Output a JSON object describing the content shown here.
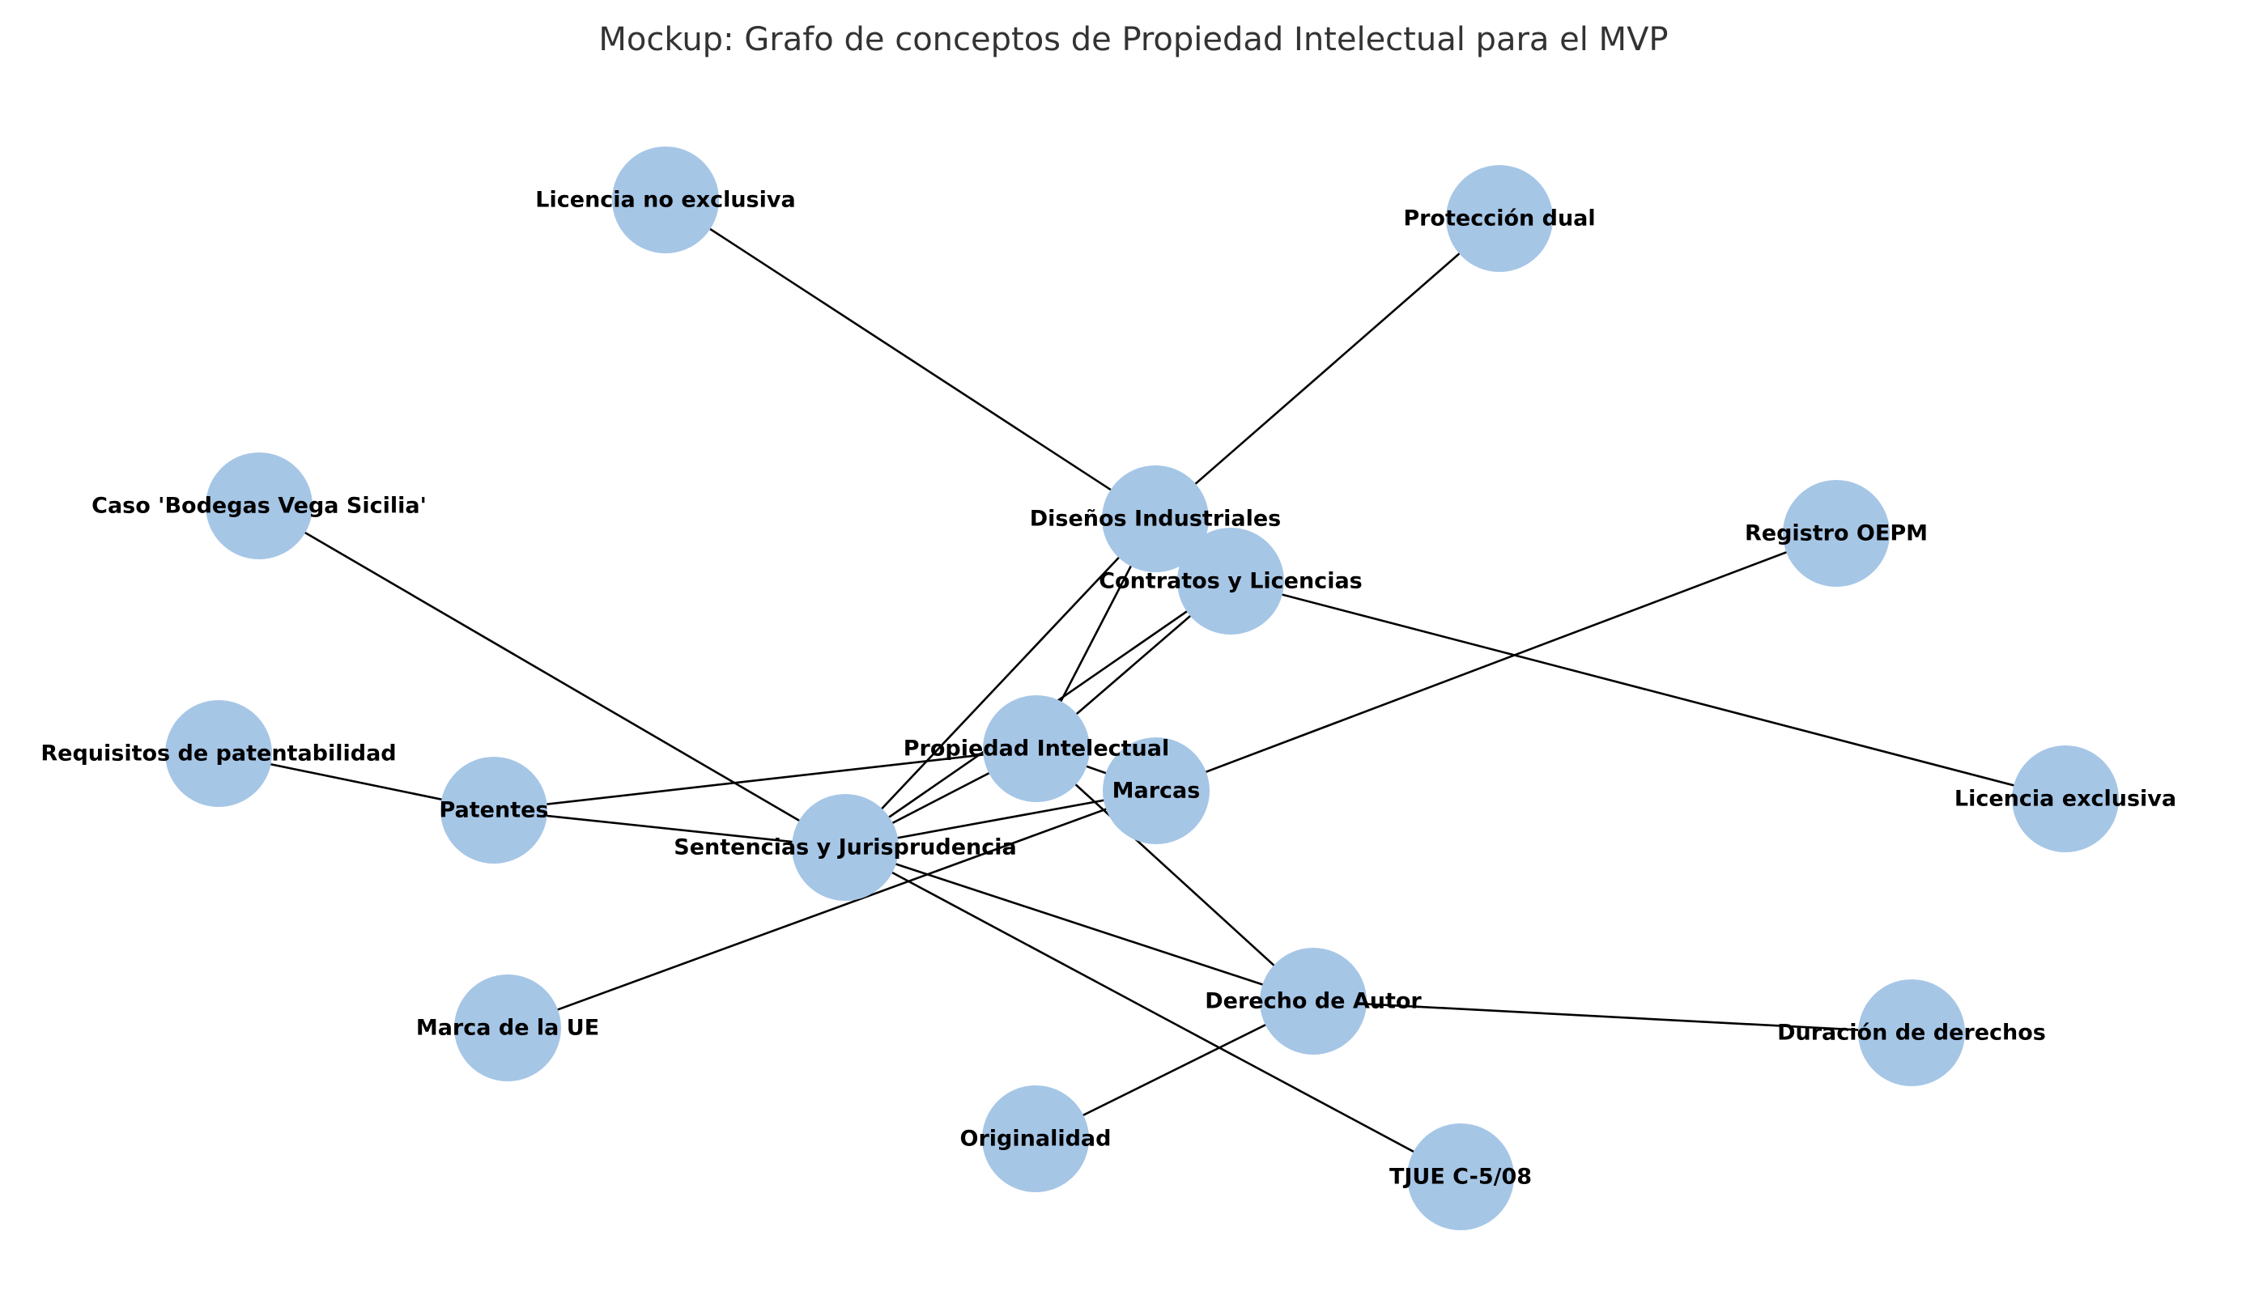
{
  "title": "Mockup: Grafo de conceptos de Propiedad Intelectual para el MVP",
  "colors": {
    "node_fill": "#a6c6e6",
    "edge": "#000000",
    "title": "#333333",
    "label": "#000000"
  },
  "nodes": [
    {
      "id": "pi",
      "label": "Propiedad Intelectual"
    },
    {
      "id": "patentes",
      "label": "Patentes"
    },
    {
      "id": "marcas",
      "label": "Marcas"
    },
    {
      "id": "autor",
      "label": "Derecho de Autor"
    },
    {
      "id": "disenos",
      "label": "Diseños Industriales"
    },
    {
      "id": "contratos",
      "label": "Contratos y Licencias"
    },
    {
      "id": "sentencias",
      "label": "Sentencias y Jurisprudencia"
    },
    {
      "id": "requisitos",
      "label": "Requisitos de patentabilidad"
    },
    {
      "id": "oepm",
      "label": "Registro OEPM"
    },
    {
      "id": "marca_ue",
      "label": "Marca de la UE"
    },
    {
      "id": "originalidad",
      "label": "Originalidad"
    },
    {
      "id": "duracion",
      "label": "Duración de derechos"
    },
    {
      "id": "dual",
      "label": "Protección dual"
    },
    {
      "id": "exclusiva",
      "label": "Licencia exclusiva"
    },
    {
      "id": "no_exclusiva",
      "label": "Licencia no exclusiva"
    },
    {
      "id": "tjue",
      "label": "TJUE C-5/08"
    },
    {
      "id": "vega",
      "label": "Caso 'Bodegas Vega Sicilia'"
    }
  ],
  "edges": [
    [
      "pi",
      "patentes"
    ],
    [
      "pi",
      "marcas"
    ],
    [
      "pi",
      "autor"
    ],
    [
      "pi",
      "disenos"
    ],
    [
      "pi",
      "contratos"
    ],
    [
      "pi",
      "sentencias"
    ],
    [
      "patentes",
      "requisitos"
    ],
    [
      "patentes",
      "sentencias"
    ],
    [
      "marcas",
      "oepm"
    ],
    [
      "marcas",
      "marca_ue"
    ],
    [
      "marcas",
      "sentencias"
    ],
    [
      "autor",
      "originalidad"
    ],
    [
      "autor",
      "duracion"
    ],
    [
      "autor",
      "sentencias"
    ],
    [
      "disenos",
      "dual"
    ],
    [
      "disenos",
      "no_exclusiva"
    ],
    [
      "disenos",
      "sentencias"
    ],
    [
      "contratos",
      "exclusiva"
    ],
    [
      "contratos",
      "sentencias"
    ],
    [
      "sentencias",
      "tjue"
    ],
    [
      "sentencias",
      "vega"
    ]
  ]
}
